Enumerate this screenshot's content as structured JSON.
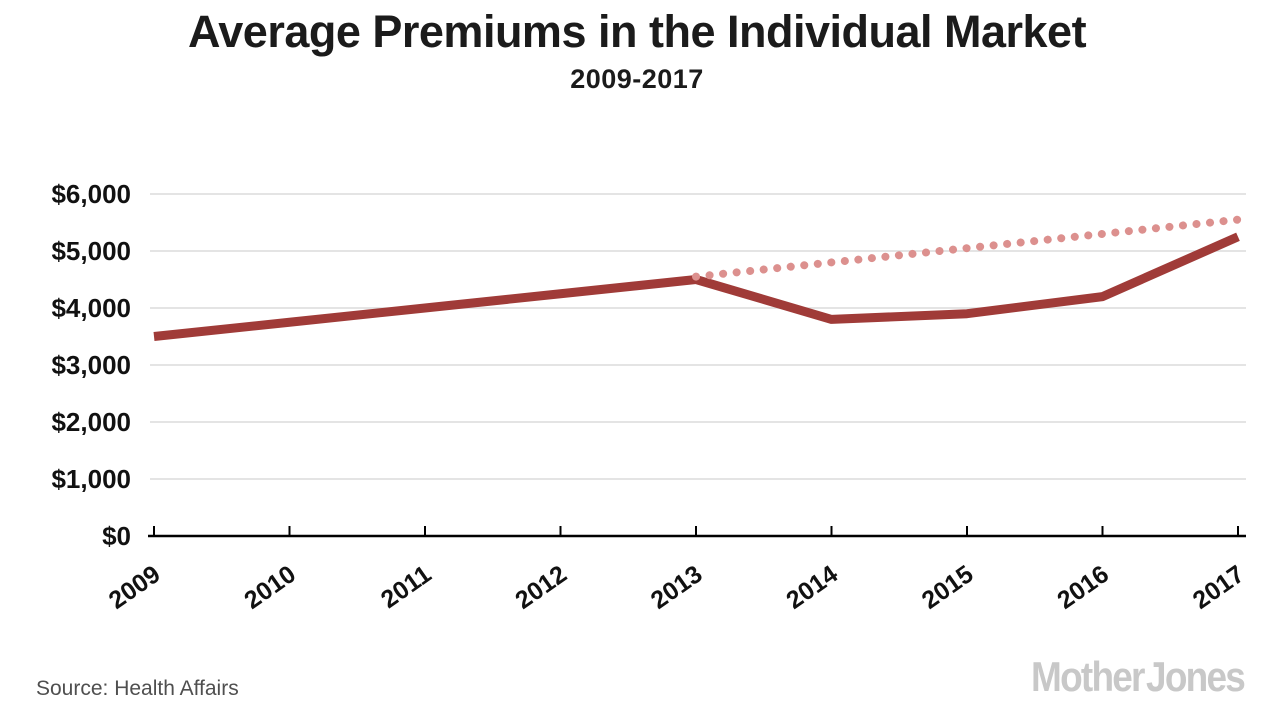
{
  "page": {
    "title": "Average Premiums in the Individual Market",
    "subtitle": "2009-2017",
    "source": "Source: Health Affairs",
    "logo": "Mother Jones"
  },
  "chart_data": {
    "type": "line",
    "title": "Average Premiums in the Individual Market",
    "subtitle": "2009-2017",
    "x": [
      2009,
      2010,
      2011,
      2012,
      2013,
      2014,
      2015,
      2016,
      2017
    ],
    "x_tick_labels": [
      "2009",
      "2010",
      "2011",
      "2012",
      "2013",
      "2014",
      "2015",
      "2016",
      "2017"
    ],
    "y_tick_labels": [
      "$6,000",
      "$5,000",
      "$4,000",
      "$3,000",
      "$2,000",
      "$1,000",
      "$0"
    ],
    "ylim": [
      0,
      6000
    ],
    "y_tick_step": 1000,
    "grid": "horizontal-light-gray",
    "legend": "none",
    "series": [
      {
        "name": "solid-line-actual-premiums",
        "style": "solid",
        "color": "#a03b38",
        "values": [
          3500,
          3750,
          4000,
          4250,
          4500,
          3800,
          3900,
          4200,
          5250
        ]
      },
      {
        "name": "dotted-line-pre-2014-trend-projection",
        "style": "dotted",
        "color": "#dc908e",
        "values": [
          null,
          null,
          null,
          null,
          4550,
          4800,
          5050,
          5300,
          5550
        ]
      }
    ],
    "source": "Source: Health Affairs",
    "branding": "Mother Jones"
  }
}
